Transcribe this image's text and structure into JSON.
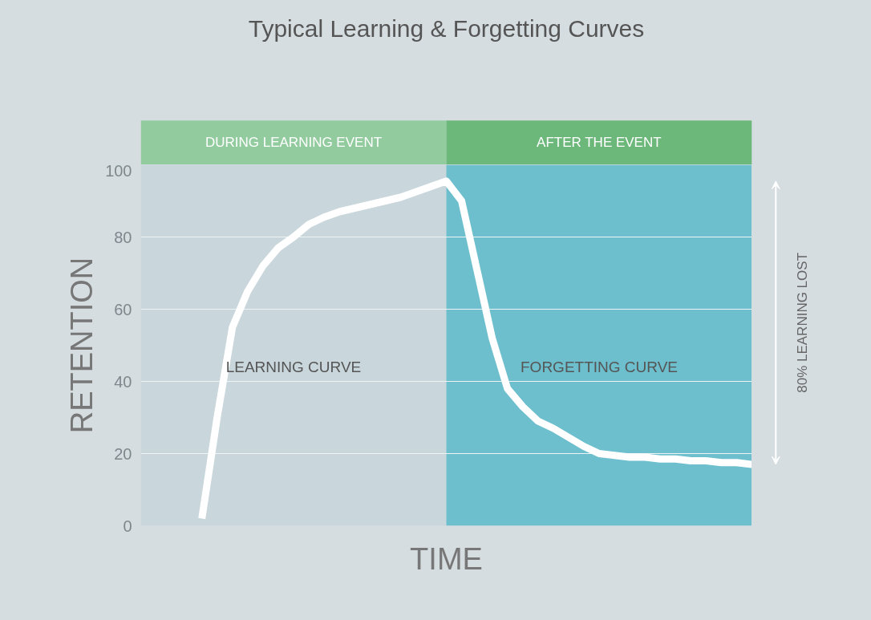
{
  "chart_data": {
    "type": "line",
    "title": "Typical Learning & Forgetting Curves",
    "xlabel": "TIME",
    "ylabel": "RETENTION",
    "categories": [
      null,
      null,
      null,
      null,
      null,
      null,
      null,
      null,
      null,
      null,
      null,
      null,
      null,
      null,
      null,
      null,
      null,
      null,
      null,
      null,
      null,
      null,
      null,
      null,
      null,
      null,
      null,
      null,
      null,
      null,
      null,
      null,
      null,
      null,
      null,
      null,
      null,
      null,
      null,
      null,
      null
    ],
    "series": [
      {
        "color": "#ffffff",
        "values": [
          null,
          null,
          null,
          null,
          2,
          30,
          55,
          65,
          72,
          77,
          80,
          83.5,
          85.5,
          87,
          88,
          89,
          90,
          91,
          92.5,
          94,
          95.5,
          90,
          71,
          52,
          38,
          33,
          29,
          27,
          24.5,
          22,
          20,
          19.5,
          19,
          19,
          18.5,
          18.5,
          18,
          18,
          17.5,
          17.5,
          17
        ]
      }
    ],
    "ylim": [
      0,
      100
    ],
    "yticks": [
      0,
      20,
      40,
      60,
      80,
      100
    ],
    "tick_labels": "y",
    "grid": "y",
    "line_style": "solid",
    "annotations": [
      "DURING LEARNING EVENT",
      "AFTER THE EVENT",
      "LEARNING CURVE",
      "FORGETTING CURVE",
      "80% LEARNING LOST"
    ]
  }
}
